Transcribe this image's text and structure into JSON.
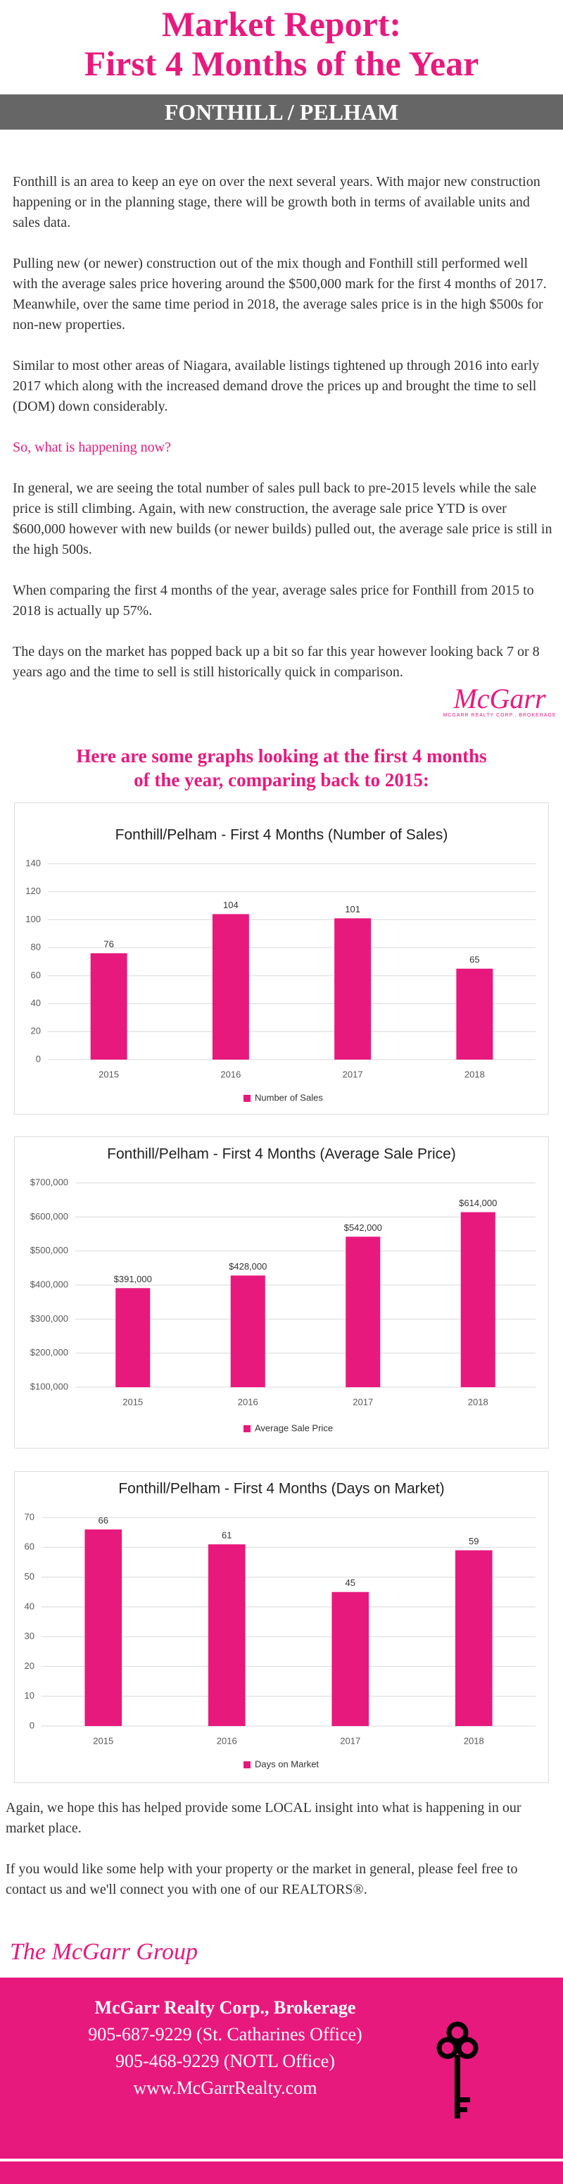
{
  "header": {
    "title_lines": [
      "Market Report:",
      "First 4 Months of the Year"
    ],
    "banner": "FONTHILL / PELHAM"
  },
  "intro": {
    "paragraphs": [
      "Fonthill is an area to keep an eye on over the next several years. With major new construction happening or in the planning stage, there will be growth both in terms of available units and sales data.",
      "Pulling new (or newer) construction out of the mix though and Fonthill still performed well with the average sales price hovering around the $500,000 mark for the first 4 months of 2017. Meanwhile, over the same time period in 2018, the average sales price is in the high $500s for non-new properties.",
      "Similar to most other areas of Niagara, available listings tightened up through 2016 into early 2017 which along with the increased demand drove the prices up and brought the time to sell (DOM) down considerably."
    ],
    "question": "So, what is happening now?",
    "answers": [
      "In general, we are seeing the total number of sales pull back to pre-2015 levels while the sale price is still climbing. Again, with new construction, the average sale price YTD is over $600,000 however with new builds (or newer builds) pulled out, the average sale price is still in the high 500s.",
      "When comparing the first 4 months of the year, average sales price for Fonthill from 2015 to 2018 is actually up 57%.",
      "The days on the market has popped back up a bit so far this year however looking back 7 or 8 years ago and the time to sell is still historically quick in comparison."
    ]
  },
  "logo": {
    "name": "McGarr",
    "tagline": "MCGARR REALTY CORP., BROKERAGE"
  },
  "graphs_heading": [
    "Here are some graphs looking at the first 4 months",
    "of the year, comparing back to 2015:"
  ],
  "chart_data": [
    {
      "type": "bar",
      "title": "Fonthill/Pelham - First 4 Months (Number of Sales)",
      "categories": [
        "2015",
        "2016",
        "2017",
        "2018"
      ],
      "series": [
        {
          "name": "Number of Sales",
          "color": "#e8197d",
          "values": [
            76,
            104,
            101,
            65
          ]
        }
      ],
      "ylim": [
        0,
        140
      ],
      "yticks": [
        0,
        20,
        40,
        60,
        80,
        100,
        120,
        140
      ],
      "grid": true,
      "legend": "bottom"
    },
    {
      "type": "bar",
      "title": "Fonthill/Pelham - First 4 Months (Average Sale Price)",
      "categories": [
        "2015",
        "2016",
        "2017",
        "2018"
      ],
      "series": [
        {
          "name": "Average Sale Price",
          "color": "#e8197d",
          "values": [
            391000,
            428000,
            542000,
            614000
          ],
          "value_labels": [
            "$391,000",
            "$428,000",
            "$542,000",
            "$614,000"
          ]
        }
      ],
      "ylim": [
        100000,
        700000
      ],
      "yticks": [
        {
          "value": 100000,
          "label": "$100,000"
        },
        {
          "value": 200000,
          "label": "$200,000"
        },
        {
          "value": 300000,
          "label": "$300,000"
        },
        {
          "value": 400000,
          "label": "$400,000"
        },
        {
          "value": 500000,
          "label": "$500,000"
        },
        {
          "value": 600000,
          "label": "$600,000"
        },
        {
          "value": 700000,
          "label": "$700,000"
        }
      ],
      "grid": true,
      "legend": "bottom"
    },
    {
      "type": "bar",
      "title": "Fonthill/Pelham - First 4 Months (Days on Market)",
      "categories": [
        "2015",
        "2016",
        "2017",
        "2018"
      ],
      "series": [
        {
          "name": "Days on Market",
          "color": "#e8197d",
          "values": [
            66,
            61,
            45,
            59
          ]
        }
      ],
      "ylim": [
        0,
        70
      ],
      "yticks": [
        0,
        10,
        20,
        30,
        40,
        50,
        60,
        70
      ],
      "grid": true,
      "legend": "bottom"
    }
  ],
  "closing": [
    "Again, we hope this has helped provide some LOCAL insight into what is happening in our market place.",
    "If you would like some help with your property or the market in general, please feel free to contact us and we'll connect you with one of our REALTORS®."
  ],
  "signature": "The McGarr Group",
  "footer": {
    "lines": [
      "McGarr Realty Corp., Brokerage",
      "905-687-9229 (St. Catharines Office)",
      "905-468-9229 (NOTL Office)",
      "www.McGarrRealty.com"
    ]
  }
}
